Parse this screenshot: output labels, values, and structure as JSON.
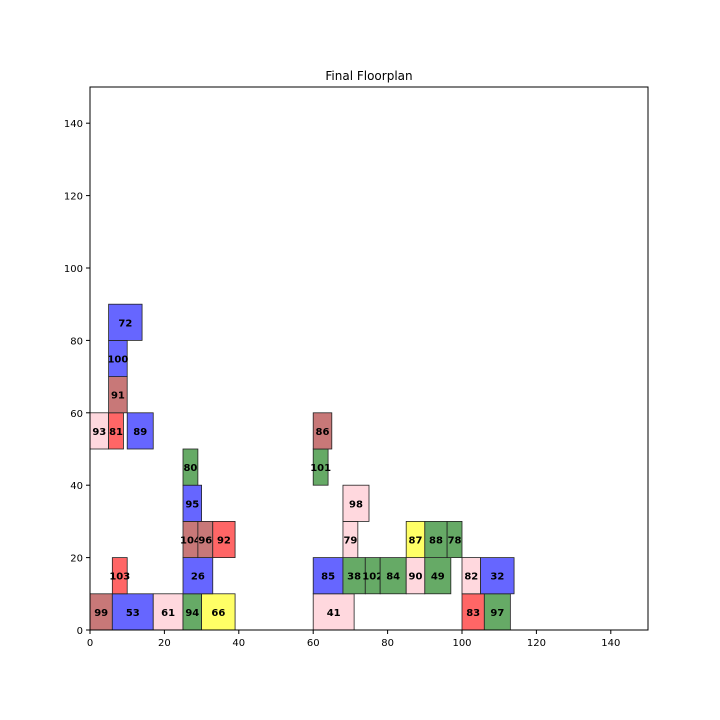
{
  "chart_data": {
    "type": "floorplan",
    "title": "Final Floorplan",
    "xlabel": "",
    "ylabel": "",
    "xlim": [
      0,
      150
    ],
    "ylim": [
      0,
      150
    ],
    "xticks": [
      0,
      20,
      40,
      60,
      80,
      100,
      120,
      140
    ],
    "yticks": [
      0,
      20,
      40,
      60,
      80,
      100,
      120,
      140
    ],
    "grid": false,
    "colors": {
      "pink": "#ffd8de",
      "red": "#ff6666",
      "blue": "#6666ff",
      "green": "#66aa66",
      "brown": "#c87878",
      "yellow": "#ffff66"
    },
    "blocks": [
      {
        "id": "99",
        "x": 0,
        "y": 0,
        "w": 6,
        "h": 10,
        "color": "brown"
      },
      {
        "id": "53",
        "x": 6,
        "y": 0,
        "w": 11,
        "h": 10,
        "color": "blue"
      },
      {
        "id": "61",
        "x": 17,
        "y": 0,
        "w": 8,
        "h": 10,
        "color": "pink"
      },
      {
        "id": "94",
        "x": 25,
        "y": 0,
        "w": 5,
        "h": 10,
        "color": "green"
      },
      {
        "id": "66",
        "x": 30,
        "y": 0,
        "w": 9,
        "h": 10,
        "color": "yellow"
      },
      {
        "id": "103",
        "x": 6,
        "y": 10,
        "w": 4,
        "h": 10,
        "color": "red"
      },
      {
        "id": "26",
        "x": 25,
        "y": 10,
        "w": 8,
        "h": 10,
        "color": "blue"
      },
      {
        "id": "104",
        "x": 25,
        "y": 20,
        "w": 4,
        "h": 10,
        "color": "brown"
      },
      {
        "id": "96",
        "x": 29,
        "y": 20,
        "w": 4,
        "h": 10,
        "color": "brown"
      },
      {
        "id": "92",
        "x": 33,
        "y": 20,
        "w": 6,
        "h": 10,
        "color": "red"
      },
      {
        "id": "95",
        "x": 25,
        "y": 30,
        "w": 5,
        "h": 10,
        "color": "blue"
      },
      {
        "id": "80",
        "x": 25,
        "y": 40,
        "w": 4,
        "h": 10,
        "color": "green"
      },
      {
        "id": "93",
        "x": 0,
        "y": 50,
        "w": 5,
        "h": 10,
        "color": "pink"
      },
      {
        "id": "81",
        "x": 5,
        "y": 50,
        "w": 4,
        "h": 10,
        "color": "red"
      },
      {
        "id": "89",
        "x": 10,
        "y": 50,
        "w": 7,
        "h": 10,
        "color": "blue"
      },
      {
        "id": "91",
        "x": 5,
        "y": 60,
        "w": 5,
        "h": 10,
        "color": "brown"
      },
      {
        "id": "100",
        "x": 5,
        "y": 70,
        "w": 5,
        "h": 10,
        "color": "blue"
      },
      {
        "id": "72",
        "x": 5,
        "y": 80,
        "w": 9,
        "h": 10,
        "color": "blue"
      },
      {
        "id": "41",
        "x": 60,
        "y": 0,
        "w": 11,
        "h": 10,
        "color": "pink"
      },
      {
        "id": "85",
        "x": 60,
        "y": 10,
        "w": 8,
        "h": 10,
        "color": "blue"
      },
      {
        "id": "38",
        "x": 68,
        "y": 10,
        "w": 6,
        "h": 10,
        "color": "green"
      },
      {
        "id": "102",
        "x": 74,
        "y": 10,
        "w": 4,
        "h": 10,
        "color": "green"
      },
      {
        "id": "84",
        "x": 78,
        "y": 10,
        "w": 7,
        "h": 10,
        "color": "green"
      },
      {
        "id": "90",
        "x": 85,
        "y": 10,
        "w": 5,
        "h": 10,
        "color": "pink"
      },
      {
        "id": "49",
        "x": 90,
        "y": 10,
        "w": 7,
        "h": 10,
        "color": "green"
      },
      {
        "id": "79",
        "x": 68,
        "y": 20,
        "w": 4,
        "h": 10,
        "color": "pink"
      },
      {
        "id": "98",
        "x": 68,
        "y": 30,
        "w": 7,
        "h": 10,
        "color": "pink"
      },
      {
        "id": "101",
        "x": 60,
        "y": 40,
        "w": 4,
        "h": 10,
        "color": "green"
      },
      {
        "id": "86",
        "x": 60,
        "y": 50,
        "w": 5,
        "h": 10,
        "color": "brown"
      },
      {
        "id": "87",
        "x": 85,
        "y": 20,
        "w": 5,
        "h": 10,
        "color": "yellow"
      },
      {
        "id": "88",
        "x": 90,
        "y": 20,
        "w": 6,
        "h": 10,
        "color": "green"
      },
      {
        "id": "78",
        "x": 96,
        "y": 20,
        "w": 4,
        "h": 10,
        "color": "green"
      },
      {
        "id": "83",
        "x": 100,
        "y": 0,
        "w": 6,
        "h": 10,
        "color": "red"
      },
      {
        "id": "97",
        "x": 106,
        "y": 0,
        "w": 7,
        "h": 10,
        "color": "green"
      },
      {
        "id": "82",
        "x": 100,
        "y": 10,
        "w": 5,
        "h": 10,
        "color": "pink"
      },
      {
        "id": "32",
        "x": 105,
        "y": 10,
        "w": 9,
        "h": 10,
        "color": "blue"
      }
    ]
  }
}
